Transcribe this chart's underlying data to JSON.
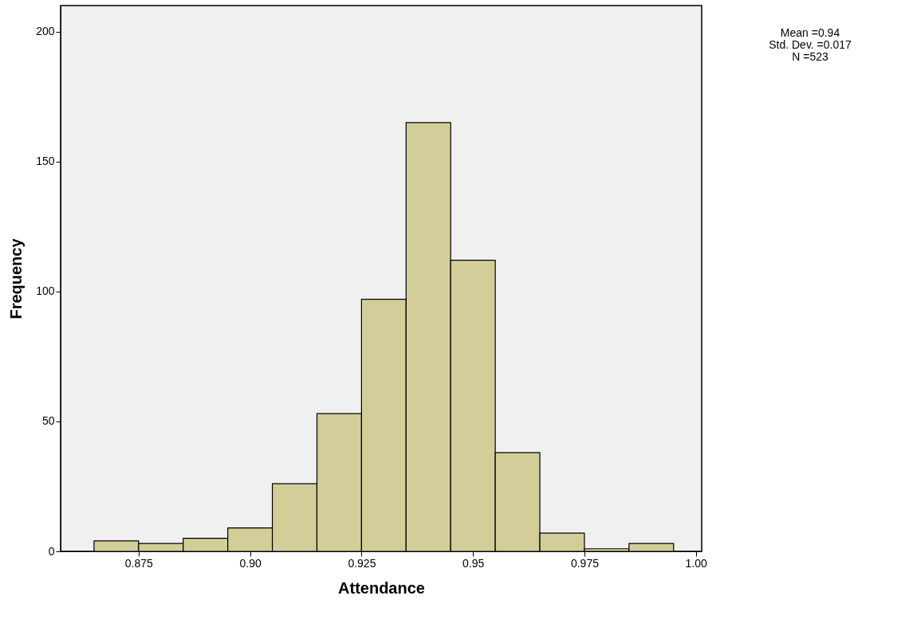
{
  "chart_data": {
    "type": "histogram",
    "xlabel": "Attendance",
    "ylabel": "Frequency",
    "bins": [
      0.865,
      0.875,
      0.885,
      0.895,
      0.905,
      0.915,
      0.925,
      0.935,
      0.945,
      0.955,
      0.965,
      0.975,
      0.985,
      0.995
    ],
    "values": [
      4,
      3,
      5,
      9,
      26,
      53,
      97,
      165,
      112,
      38,
      7,
      1,
      3
    ],
    "color": "#d3ce99",
    "xlim": [
      0.8575,
      1.0013
    ],
    "ylim": [
      0,
      210
    ],
    "xticks": [
      0.875,
      {
        "value": 0.9,
        "label": "0.90"
      },
      0.925,
      0.95,
      0.975,
      {
        "value": 1.0,
        "label": "1.00"
      }
    ],
    "yticks": [
      0,
      50,
      100,
      150,
      200
    ],
    "grid": false,
    "annotations": [
      "Mean =0.94",
      "Std. Dev. =0.017",
      "N =523"
    ]
  }
}
